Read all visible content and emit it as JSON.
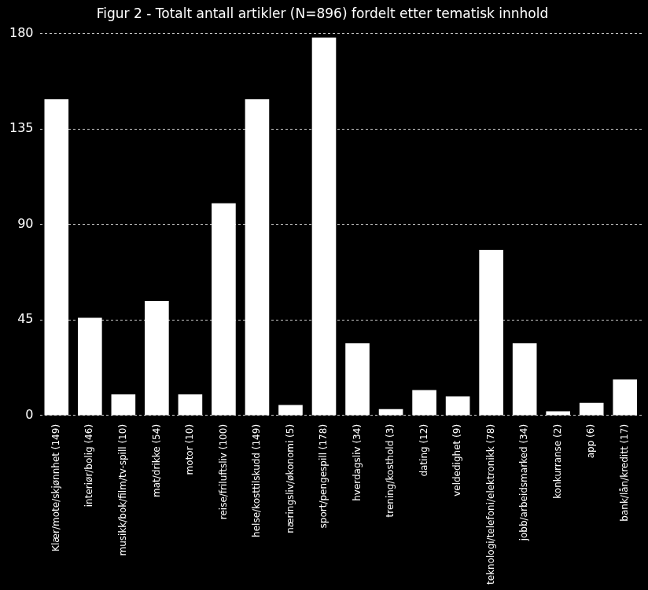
{
  "chart_data": {
    "type": "bar",
    "title": "Figur 2 - Totalt antall artikler (N=896) fordelt etter tematisk innhold",
    "categories": [
      "Klær/mote/skjønnhet (149)",
      "interiør/bolig (46)",
      "musikk/bok/film/tv-spill (10)",
      "mat/drikke (54)",
      "motor (10)",
      "reise/friluftsliv (100)",
      "helse/kosttilskudd (149)",
      "næringsliv/økonomi (5)",
      "sport/pengespill (178)",
      "hverdagsliv (34)",
      "trening/kosthold (3)",
      "dating (12)",
      "veldedighet (9)",
      "teknologi/telefoni/elektronikk (78)",
      "jobb/arbeidsmarked (34)",
      "konkurranse (2)",
      "app (6)",
      "bank/lån/kreditt (17)"
    ],
    "values": [
      149,
      46,
      10,
      54,
      10,
      100,
      149,
      5,
      178,
      34,
      3,
      12,
      9,
      78,
      34,
      2,
      6,
      17
    ],
    "color": "#ffffff",
    "ylim": [
      0,
      180
    ],
    "yticks": [
      0,
      45,
      90,
      135,
      180
    ],
    "grid": true
  }
}
